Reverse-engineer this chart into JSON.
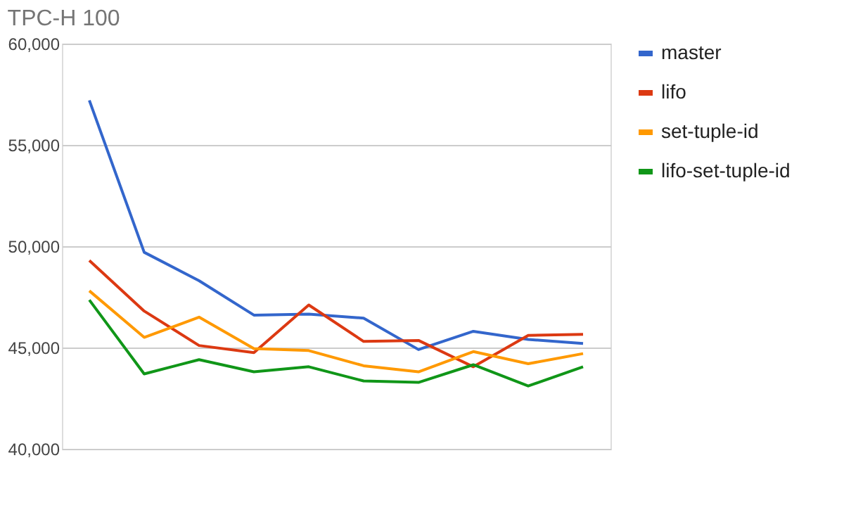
{
  "chart_data": {
    "type": "line",
    "title": "TPC-H 100",
    "categories": [
      null,
      null,
      null,
      null,
      null,
      null,
      null,
      null,
      null,
      null
    ],
    "series": [
      {
        "name": "master",
        "color": "#3366cc",
        "values": [
          57200,
          49700,
          48300,
          46600,
          46650,
          46450,
          44900,
          45800,
          45400,
          45200
        ]
      },
      {
        "name": "lifo",
        "color": "#dc3912",
        "values": [
          49300,
          46800,
          45100,
          44750,
          47100,
          45300,
          45350,
          44050,
          45600,
          45650
        ]
      },
      {
        "name": "set-tuple-id",
        "color": "#ff9900",
        "values": [
          47800,
          45500,
          46500,
          44950,
          44850,
          44100,
          43800,
          44800,
          44200,
          44700
        ]
      },
      {
        "name": "lifo-set-tuple-id",
        "color": "#109618",
        "values": [
          47350,
          43700,
          44400,
          43800,
          44050,
          43350,
          43280,
          44150,
          43100,
          44050
        ]
      }
    ],
    "ylim": [
      40000,
      60000
    ],
    "yticks": [
      {
        "value": 40000,
        "label": "40,000"
      },
      {
        "value": 45000,
        "label": "45,000"
      },
      {
        "value": 50000,
        "label": "50,000"
      },
      {
        "value": 55000,
        "label": "55,000"
      },
      {
        "value": 60000,
        "label": "60,000"
      }
    ],
    "grid": "y",
    "legend": "right",
    "marker": "none",
    "line_style": "solid",
    "tick_labels": "y"
  }
}
